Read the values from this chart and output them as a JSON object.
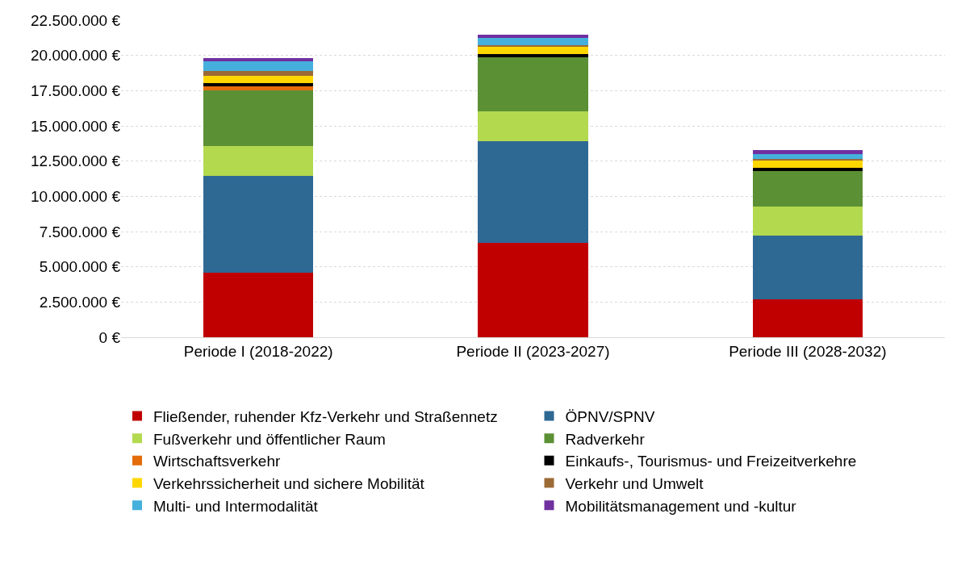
{
  "chart_data": {
    "type": "bar",
    "stacked": true,
    "categories": [
      "Periode I (2018-2022)",
      "Periode II (2023-2027)",
      "Periode III (2028-2032)"
    ],
    "series": [
      {
        "name": "Fließender, ruhender Kfz-Verkehr und Straßennetz",
        "color": "#c00000",
        "values": [
          4580000,
          6700000,
          2690000
        ]
      },
      {
        "name": "ÖPNV/SPNV",
        "color": "#2e6994",
        "values": [
          6870000,
          7210000,
          4520000
        ]
      },
      {
        "name": "Fußverkehr und öffentlicher Raum",
        "color": "#b3d94f",
        "values": [
          2120000,
          2120000,
          2060000
        ]
      },
      {
        "name": "Radverkehr",
        "color": "#5b9034",
        "values": [
          3930000,
          3850000,
          2540000
        ]
      },
      {
        "name": "Wirtschaftsverkehr",
        "color": "#e46c0a",
        "values": [
          300000,
          null,
          null
        ]
      },
      {
        "name": "Einkaufs-, Tourismus- und Freizeitverkehre",
        "color": "#000000",
        "values": [
          250000,
          190000,
          190000
        ]
      },
      {
        "name": "Verkehrssicherheit und sichere Mobilität",
        "color": "#ffd700",
        "values": [
          510000,
          520000,
          540000
        ]
      },
      {
        "name": "Verkehr und Umwelt",
        "color": "#9c6a35",
        "values": [
          350000,
          130000,
          110000
        ]
      },
      {
        "name": "Multi- und Intermodalität",
        "color": "#45b0dc",
        "values": [
          670000,
          520000,
          340000
        ]
      },
      {
        "name": "Mobilitätsmanagement und -kultur",
        "color": "#7030a0",
        "values": [
          240000,
          240000,
          270000
        ]
      }
    ],
    "ylim": [
      0,
      22500000
    ],
    "yticks": [
      {
        "value": 0,
        "label": "0 €"
      },
      {
        "value": 2500000,
        "label": "2.500.000 €"
      },
      {
        "value": 5000000,
        "label": "5.000.000 €"
      },
      {
        "value": 7500000,
        "label": "7.500.000 €"
      },
      {
        "value": 10000000,
        "label": "10.000.000 €"
      },
      {
        "value": 12500000,
        "label": "12.500.000 €"
      },
      {
        "value": 15000000,
        "label": "15.000.000 €"
      },
      {
        "value": 17500000,
        "label": "17.500.000 €"
      },
      {
        "value": 20000000,
        "label": "20.000.000 €"
      },
      {
        "value": 22500000,
        "label": "22.500.000 €"
      }
    ],
    "grid": "y",
    "legend": "bottom"
  }
}
